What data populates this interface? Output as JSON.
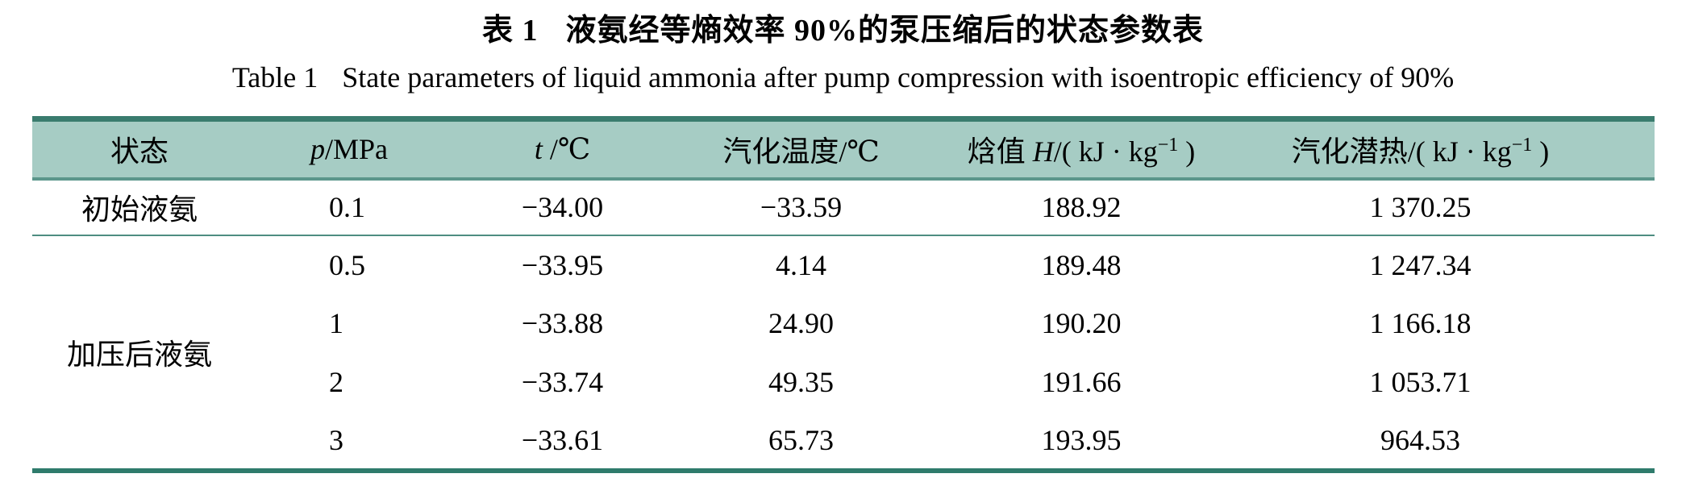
{
  "titles": {
    "caption_cn_label": "表 1",
    "caption_cn_text": "液氨经等熵效率 90%的泵压缩后的状态参数表",
    "caption_en_label": "Table 1",
    "caption_en_text": "State parameters of liquid ammonia after pump compression with isoentropic efficiency of 90%"
  },
  "colors": {
    "header_bg": "#a6ccc4",
    "border_dark": "#3a7c6e",
    "border_medium": "#5b968b",
    "row_separator": "#4e8d81",
    "border_bottom": "#2f7b6c"
  },
  "table": {
    "headers": [
      {
        "pre": "状态"
      },
      {
        "var": "p",
        "post": "/MPa"
      },
      {
        "var": "t",
        "post": " /℃"
      },
      {
        "pre": "汽化温度/℃"
      },
      {
        "pre": "焓值 ",
        "var": "H",
        "post": "/( kJ · kg",
        "sup": "−1",
        "post2": " )"
      },
      {
        "pre": "汽化潜热/( kJ · kg",
        "sup": "−1",
        "post2": " )"
      }
    ],
    "sections": [
      {
        "state": "初始液氨",
        "rows": [
          [
            "0.1",
            "−34.00",
            "−33.59",
            "188.92",
            "1 370.25"
          ]
        ]
      },
      {
        "state": "加压后液氨",
        "rows": [
          [
            "0.5",
            "−33.95",
            "4.14",
            "189.48",
            "1 247.34"
          ],
          [
            "1",
            "−33.88",
            "24.90",
            "190.20",
            "1 166.18"
          ],
          [
            "2",
            "−33.74",
            "49.35",
            "191.66",
            "1 053.71"
          ],
          [
            "3",
            "−33.61",
            "65.73",
            "193.95",
            "964.53"
          ]
        ]
      }
    ]
  }
}
